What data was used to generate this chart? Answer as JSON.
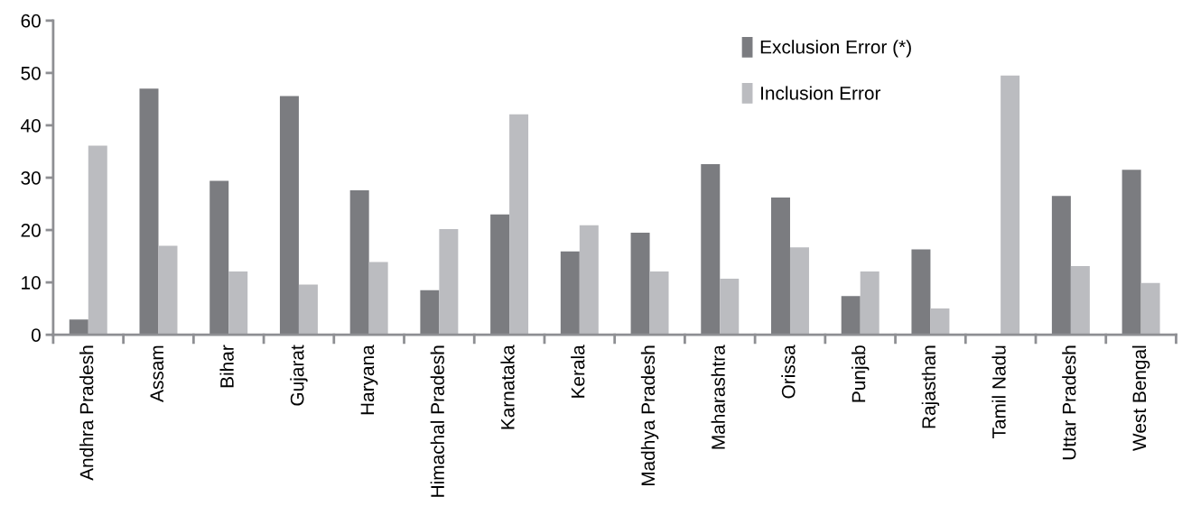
{
  "chart_data": {
    "type": "bar",
    "categories": [
      "Andhra Pradesh",
      "Assam",
      "Bihar",
      "Gujarat",
      "Haryana",
      "Himachal Pradesh",
      "Karnataka",
      "Kerala",
      "Madhya Pradesh",
      "Maharashtra",
      "Orissa",
      "Punjab",
      "Rajasthan",
      "Tamil Nadu",
      "Uttar Pradesh",
      "West Bengal"
    ],
    "series": [
      {
        "name": "Exclusion Error (*)",
        "color": "#7b7c80",
        "values": [
          2.9,
          47.0,
          29.4,
          45.6,
          27.6,
          8.5,
          23.0,
          15.9,
          19.5,
          32.6,
          26.2,
          7.4,
          16.3,
          0,
          26.5,
          31.5
        ]
      },
      {
        "name": "Inclusion Error",
        "color": "#bbbcc0",
        "values": [
          36.1,
          17.0,
          12.1,
          9.6,
          13.9,
          20.2,
          42.1,
          20.9,
          12.1,
          10.7,
          16.7,
          12.1,
          5.0,
          49.5,
          13.1,
          9.9
        ]
      }
    ],
    "ylim": [
      0,
      60
    ],
    "yticks": [
      0,
      10,
      20,
      30,
      40,
      50,
      60
    ],
    "grid": false,
    "legend": "top right"
  }
}
